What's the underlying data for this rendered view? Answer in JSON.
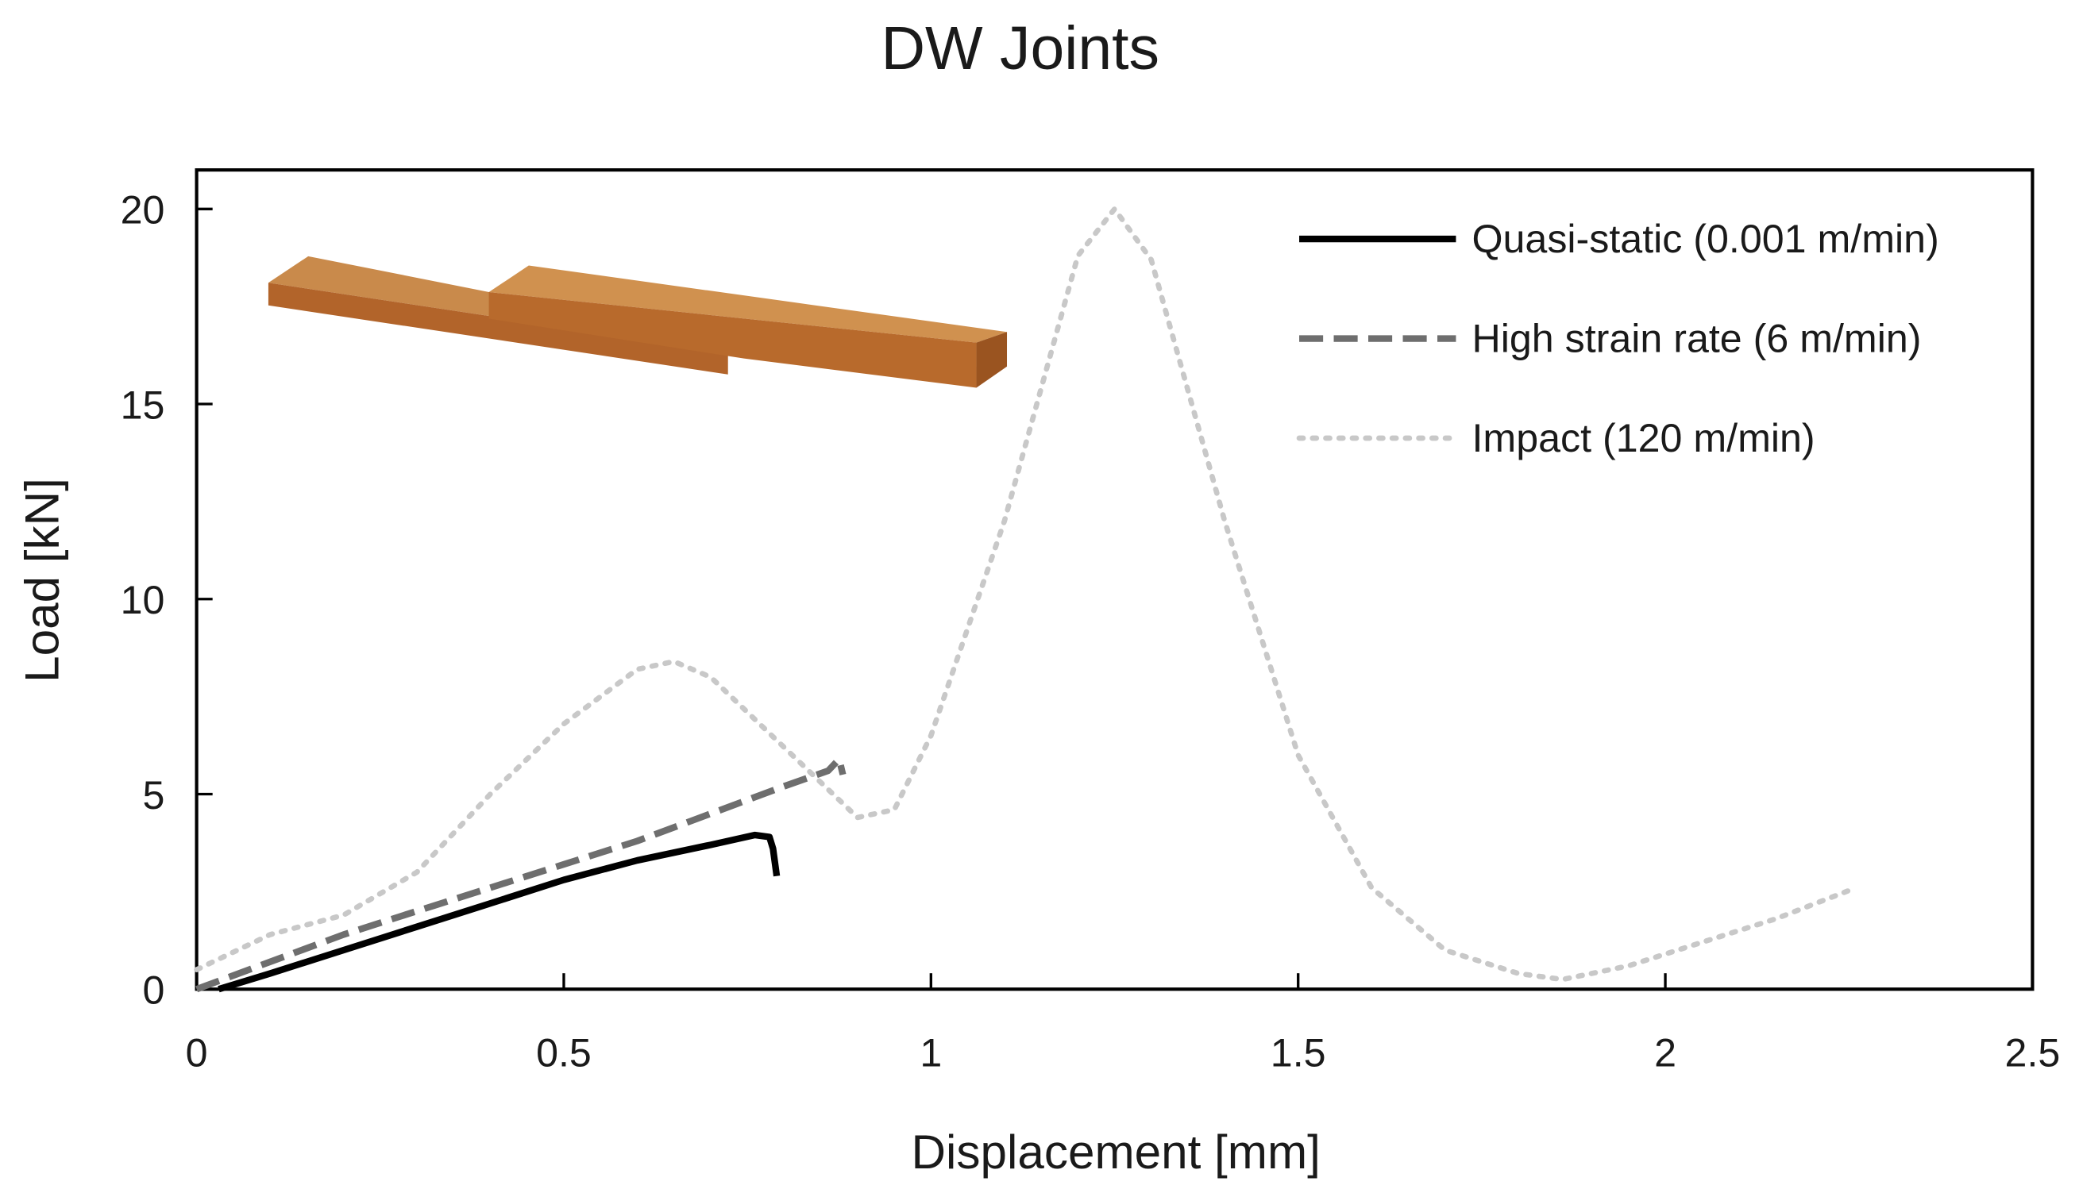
{
  "chart_data": {
    "type": "line",
    "title": "DW Joints",
    "x_label": "Displacement [mm]",
    "y_label": "Load [kN]",
    "xlim": [
      0,
      2.5
    ],
    "ylim": [
      0,
      21
    ],
    "xticks": [
      0,
      0.5,
      1,
      1.5,
      2,
      2.5
    ],
    "yticks": [
      0,
      5,
      10,
      15,
      20
    ],
    "legend": "upper right",
    "series": [
      {
        "name": "Quasi-static (0.001 m/min)",
        "color": "#000000",
        "style": "solid",
        "x": [
          0.03,
          0.1,
          0.2,
          0.3,
          0.4,
          0.5,
          0.6,
          0.7,
          0.76,
          0.78,
          0.785,
          0.79
        ],
        "values": [
          0,
          0.4,
          1.0,
          1.6,
          2.2,
          2.8,
          3.3,
          3.7,
          3.95,
          3.9,
          3.6,
          2.9
        ]
      },
      {
        "name": "High strain rate (6 m/min)",
        "color": "#6e6e6e",
        "style": "dashed",
        "x": [
          0,
          0.1,
          0.2,
          0.3,
          0.4,
          0.5,
          0.6,
          0.7,
          0.8,
          0.86,
          0.875,
          0.88
        ],
        "values": [
          0,
          0.7,
          1.4,
          2.0,
          2.6,
          3.2,
          3.8,
          4.5,
          5.2,
          5.6,
          5.9,
          5.5
        ]
      },
      {
        "name": "Impact (120 m/min)",
        "color": "#c8c8c8",
        "style": "dotted",
        "x": [
          0,
          0.1,
          0.2,
          0.3,
          0.4,
          0.5,
          0.6,
          0.65,
          0.7,
          0.8,
          0.9,
          0.95,
          1.0,
          1.1,
          1.2,
          1.25,
          1.3,
          1.4,
          1.5,
          1.6,
          1.7,
          1.8,
          1.86,
          1.95,
          2.05,
          2.15,
          2.26
        ],
        "values": [
          0.5,
          1.4,
          1.9,
          3.0,
          5.0,
          6.8,
          8.2,
          8.4,
          8.0,
          6.2,
          4.4,
          4.6,
          6.5,
          12.0,
          18.8,
          20.0,
          18.7,
          12.0,
          6.0,
          2.6,
          1.0,
          0.4,
          0.25,
          0.6,
          1.2,
          1.8,
          2.6
        ]
      }
    ]
  }
}
